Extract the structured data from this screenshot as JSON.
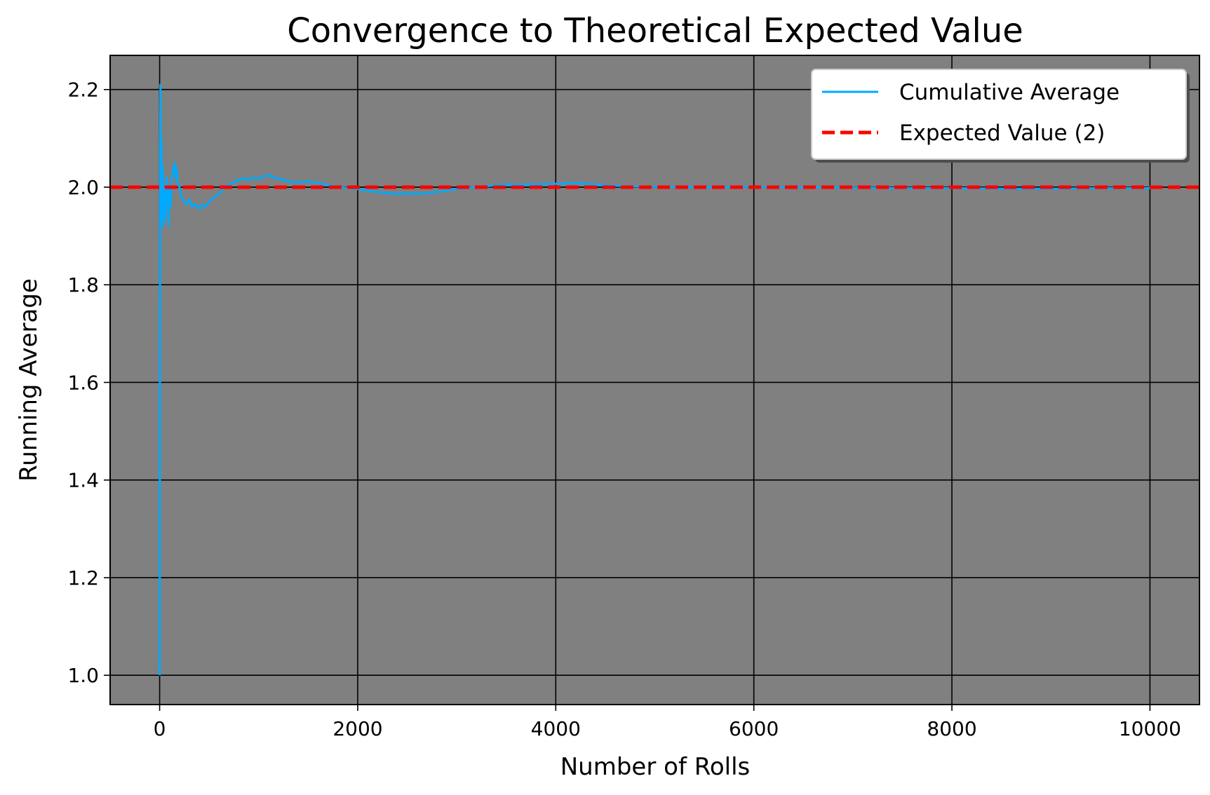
{
  "chart_data": {
    "type": "line",
    "title": "Convergence to Theoretical Expected Value",
    "xlabel": "Number of Rolls",
    "ylabel": "Running Average",
    "xlim": [
      -500,
      10500
    ],
    "ylim": [
      0.94,
      2.27
    ],
    "xticks": [
      0,
      2000,
      4000,
      6000,
      8000,
      10000
    ],
    "yticks": [
      1.0,
      1.2,
      1.4,
      1.6,
      1.8,
      2.0,
      2.2
    ],
    "ytick_labels": [
      "1.0",
      "1.2",
      "1.4",
      "1.6",
      "1.8",
      "2.0",
      "2.2"
    ],
    "grid": true,
    "legend_position": "top-right",
    "plot_background": "#808080",
    "series": [
      {
        "name": "Cumulative Average",
        "color": "#00aaff",
        "style": "solid",
        "x": [
          1,
          2,
          3,
          5,
          8,
          12,
          16,
          20,
          25,
          30,
          35,
          40,
          50,
          60,
          70,
          80,
          90,
          100,
          110,
          120,
          130,
          140,
          150,
          160,
          170,
          180,
          200,
          220,
          250,
          280,
          300,
          330,
          360,
          400,
          430,
          460,
          500,
          550,
          600,
          650,
          700,
          750,
          800,
          850,
          900,
          950,
          1000,
          1050,
          1100,
          1150,
          1200,
          1300,
          1400,
          1500,
          1600,
          1700,
          1800,
          1900,
          2000,
          2100,
          2200,
          2300,
          2400,
          2500,
          2600,
          2700,
          2800,
          2900,
          3000,
          3200,
          3400,
          3500,
          3600,
          3800,
          4000,
          4200,
          4400,
          4500,
          4700,
          5000,
          5500,
          6000,
          6500,
          7000,
          7500,
          8000,
          8500,
          9000,
          9500,
          10000
        ],
        "y": [
          1.0,
          1.5,
          1.67,
          2.08,
          2.21,
          1.93,
          2.1,
          2.05,
          1.92,
          2.04,
          1.95,
          2.0,
          1.93,
          1.97,
          2.02,
          1.98,
          1.92,
          2.0,
          1.96,
          2.01,
          2.03,
          2.04,
          2.05,
          2.02,
          2.04,
          2.01,
          2.0,
          1.98,
          1.97,
          1.965,
          1.975,
          1.96,
          1.965,
          1.955,
          1.965,
          1.96,
          1.97,
          1.98,
          1.985,
          2.0,
          2.005,
          2.01,
          2.015,
          2.018,
          2.015,
          2.02,
          2.018,
          2.022,
          2.025,
          2.02,
          2.018,
          2.012,
          2.01,
          2.012,
          2.008,
          2.005,
          2.0,
          1.998,
          1.996,
          1.993,
          1.99,
          1.988,
          1.986,
          1.987,
          1.986,
          1.988,
          1.99,
          1.993,
          1.996,
          2.0,
          2.004,
          2.006,
          2.005,
          2.006,
          2.007,
          2.008,
          2.006,
          2.004,
          2.002,
          2.001,
          2.0,
          2.001,
          2.0,
          1.999,
          1.998,
          1.998,
          1.997,
          1.997,
          1.998,
          1.998
        ]
      },
      {
        "name": "Expected Value (2)",
        "color": "#ff0000",
        "style": "dashed",
        "x": [
          -500,
          10500
        ],
        "y": [
          2.0,
          2.0
        ]
      }
    ]
  }
}
